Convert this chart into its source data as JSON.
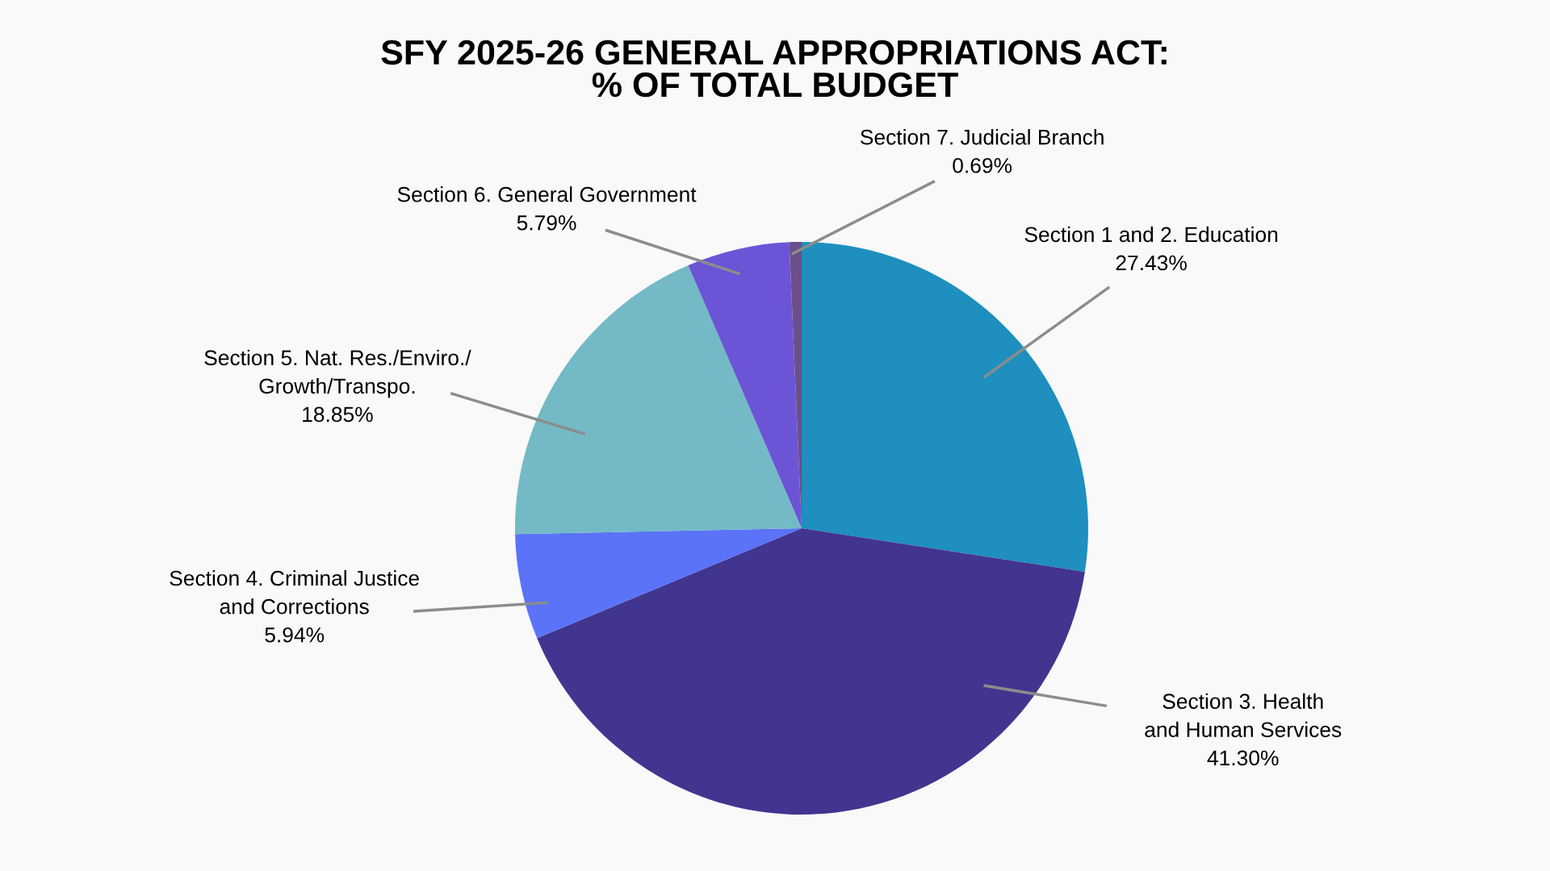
{
  "chart_data": {
    "type": "pie",
    "title": "SFY 2025-26 GENERAL APPROPRIATIONS ACT:\n% OF TOTAL BUDGET",
    "categories": [
      "Section 1 and 2. Education",
      "Section 3. Health\nand Human Services",
      "Section 4. Criminal Justice\nand Corrections",
      "Section 5. Nat. Res./Enviro./\nGrowth/Transpo.",
      "Section 6. General Government",
      "Section 7. Judicial Branch"
    ],
    "values": [
      27.43,
      41.3,
      5.94,
      18.85,
      5.79,
      0.69
    ],
    "colors": [
      "#1e8fbe",
      "#41358f",
      "#5a73f7",
      "#73bac6",
      "#6b55d6",
      "#6b4f8a"
    ],
    "value_labels": [
      "27.43%",
      "41.30%",
      "5.94%",
      "18.85%",
      "5.79%",
      "0.69%"
    ]
  }
}
